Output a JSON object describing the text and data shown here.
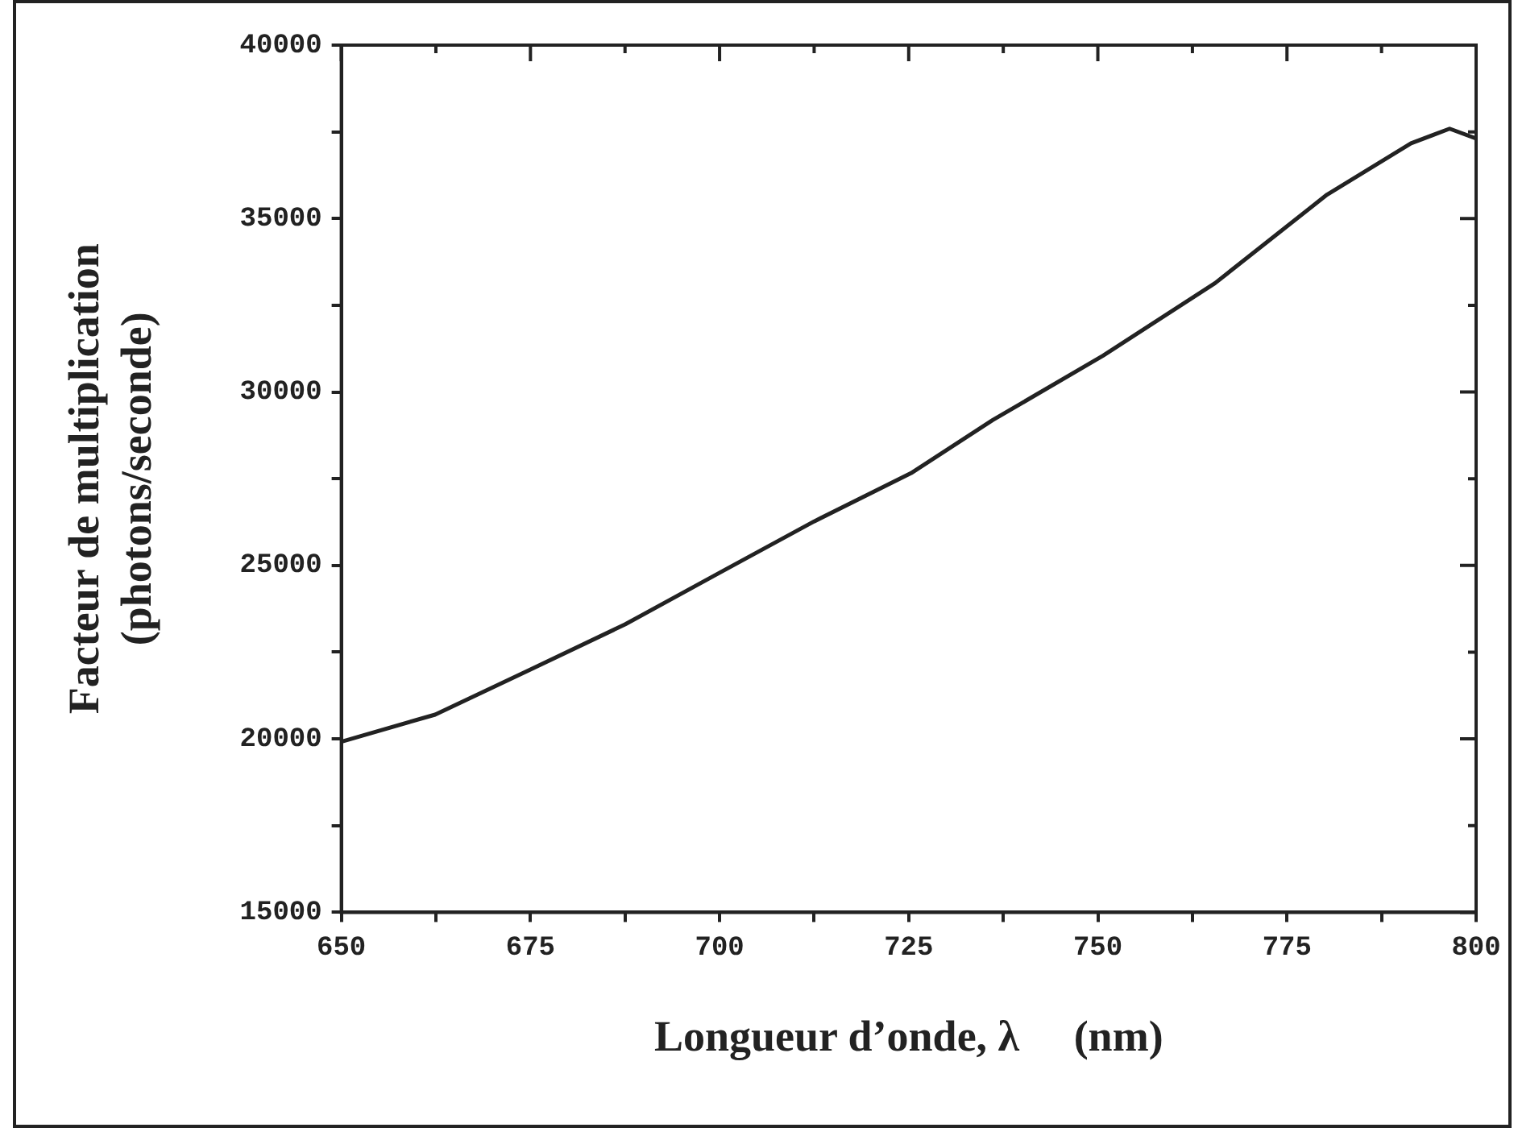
{
  "chart_data": {
    "type": "line",
    "xlabel": "Longueur d’onde, λ     (nm)",
    "ylabel": "Facteur de multiplication\n(photons/seconde)",
    "x": [
      650,
      662.4,
      675,
      687.5,
      700,
      712.5,
      725.3,
      736.1,
      750.7,
      765.5,
      780.3,
      791.4,
      796.5,
      800
    ],
    "series": [
      {
        "color": "#222222",
        "values": [
          19920,
          20700,
          22000,
          23300,
          24790,
          26270,
          27660,
          29190,
          31050,
          33140,
          35690,
          37170,
          37590,
          37310
        ]
      }
    ],
    "xlim": [
      650,
      800
    ],
    "xticks": [
      650,
      {
        "value": 662.5,
        "label": null
      },
      675,
      {
        "value": 687.5,
        "label": null
      },
      700,
      {
        "value": 712.5,
        "label": null
      },
      725,
      {
        "value": 737.5,
        "label": null
      },
      750,
      {
        "value": 762.5,
        "label": null
      },
      775,
      {
        "value": 787.5,
        "label": null
      },
      800
    ],
    "ylim": [
      15000,
      40000
    ],
    "yticks": [
      15000,
      {
        "value": 17500,
        "label": null
      },
      20000,
      {
        "value": 22500,
        "label": null
      },
      25000,
      {
        "value": 27500,
        "label": null
      },
      30000,
      {
        "value": 32500,
        "label": null
      },
      35000,
      {
        "value": 37500,
        "label": null
      },
      40000
    ],
    "grid": false,
    "legend": false,
    "marker": "none",
    "line_style": "solid"
  }
}
